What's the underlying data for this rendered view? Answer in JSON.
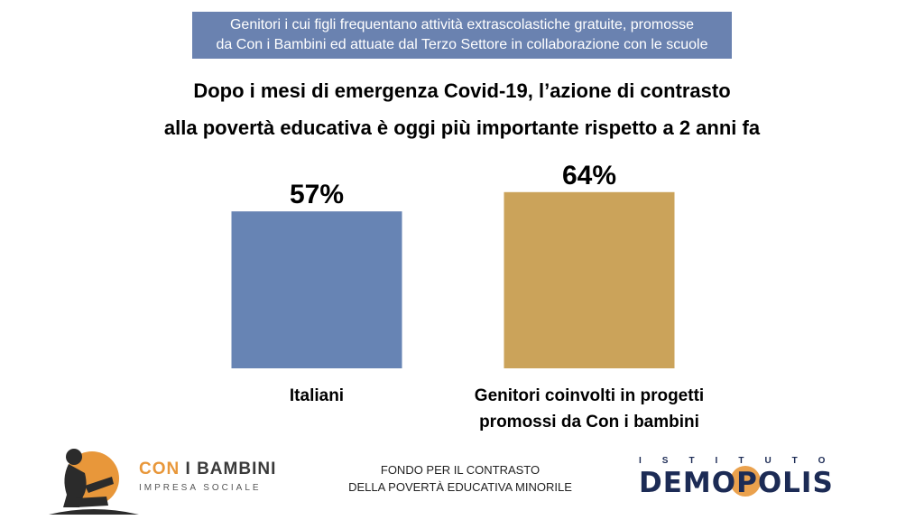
{
  "banner": {
    "line1": "Genitori i cui figli frequentano attività extrascolastiche gratuite, promosse",
    "line2": "da Con i Bambini ed attuate dal Terzo Settore in collaborazione con le scuole"
  },
  "chart_data": {
    "type": "bar",
    "title_lines": [
      "Dopo i mesi di emergenza Covid-19, l’azione di contrasto",
      "alla povertà educativa è oggi più importante rispetto a 2 anni fa"
    ],
    "categories": [
      [
        "Italiani"
      ],
      [
        "Genitori coinvolti in progetti",
        "promossi da Con i bambini"
      ]
    ],
    "values": [
      57,
      64
    ],
    "value_labels": [
      "57%",
      "64%"
    ],
    "colors": [
      "#6784b4",
      "#cba35a"
    ],
    "unit": "%"
  },
  "footer": {
    "fund_line1": "FONDO PER IL CONTRASTO",
    "fund_line2": "DELLA POVERTÀ EDUCATIVA MINORILE",
    "left_logo_brand_a": "CON",
    "left_logo_brand_b": "I BAMBINI",
    "left_logo_sub": "IMPRESA SOCIALE",
    "right_logo_top": "ISTITUTO",
    "right_logo_main": "DEMOPOLIS",
    "colors": {
      "orange": "#e8973a",
      "navy": "#1c2b55"
    }
  }
}
